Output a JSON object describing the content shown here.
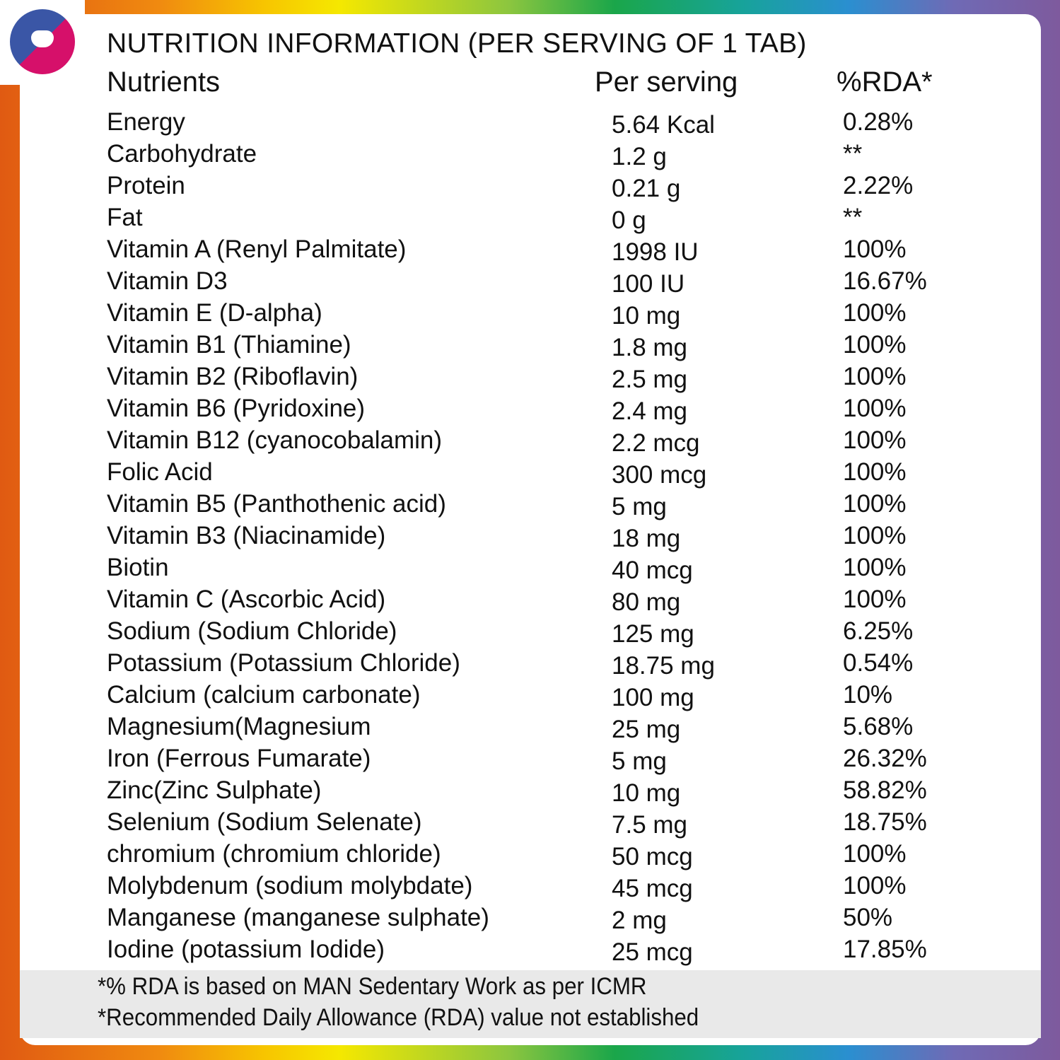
{
  "title": "NUTRITION INFORMATION (PER SERVING OF 1 TAB)",
  "headers": {
    "nutrient": "Nutrients",
    "per_serving": "Per serving",
    "rda": "%RDA*"
  },
  "rows": [
    {
      "nutrient": "Energy",
      "per_serving": "5.64 Kcal",
      "rda": "0.28%"
    },
    {
      "nutrient": "Carbohydrate",
      "per_serving": "1.2 g",
      "rda": "**"
    },
    {
      "nutrient": "Protein",
      "per_serving": "0.21 g",
      "rda": "2.22%"
    },
    {
      "nutrient": "Fat",
      "per_serving": "0 g",
      "rda": "**"
    },
    {
      "nutrient": "Vitamin A (Renyl Palmitate)",
      "per_serving": "1998 IU",
      "rda": "100%"
    },
    {
      "nutrient": "Vitamin D3",
      "per_serving": "100 IU",
      "rda": "16.67%"
    },
    {
      "nutrient": "Vitamin E (D-alpha)",
      "per_serving": "10 mg",
      "rda": "100%"
    },
    {
      "nutrient": "Vitamin B1 (Thiamine)",
      "per_serving": "1.8 mg",
      "rda": "100%"
    },
    {
      "nutrient": "Vitamin B2 (Riboflavin)",
      "per_serving": "2.5 mg",
      "rda": "100%"
    },
    {
      "nutrient": "Vitamin B6 (Pyridoxine)",
      "per_serving": "2.4 mg",
      "rda": "100%"
    },
    {
      "nutrient": "Vitamin B12 (cyanocobalamin)",
      "per_serving": "2.2 mcg",
      "rda": "100%"
    },
    {
      "nutrient": "Folic Acid",
      "per_serving": "300 mcg",
      "rda": "100%"
    },
    {
      "nutrient": "Vitamin B5 (Panthothenic acid)",
      "per_serving": "5 mg",
      "rda": "100%"
    },
    {
      "nutrient": "Vitamin B3 (Niacinamide)",
      "per_serving": "18 mg",
      "rda": "100%"
    },
    {
      "nutrient": "Biotin",
      "per_serving": "40 mcg",
      "rda": "100%"
    },
    {
      "nutrient": "Vitamin C (Ascorbic Acid)",
      "per_serving": "80 mg",
      "rda": "100%"
    },
    {
      "nutrient": "Sodium (Sodium Chloride)",
      "per_serving": "125 mg",
      "rda": "6.25%"
    },
    {
      "nutrient": "Potassium (Potassium Chloride)",
      "per_serving": "18.75 mg",
      "rda": "0.54%"
    },
    {
      "nutrient": "Calcium (calcium carbonate)",
      "per_serving": "100 mg",
      "rda": "10%"
    },
    {
      "nutrient": "Magnesium(Magnesium",
      "per_serving": "25 mg",
      "rda": "5.68%"
    },
    {
      "nutrient": "Iron (Ferrous Fumarate)",
      "per_serving": "5 mg",
      "rda": "26.32%"
    },
    {
      "nutrient": "Zinc(Zinc Sulphate)",
      "per_serving": "10 mg",
      "rda": "58.82%"
    },
    {
      "nutrient": "Selenium (Sodium Selenate)",
      "per_serving": "7.5 mg",
      "rda": "18.75%"
    },
    {
      "nutrient": "chromium (chromium chloride)",
      "per_serving": "50 mcg",
      "rda": "100%"
    },
    {
      "nutrient": "Molybdenum (sodium molybdate)",
      "per_serving": "45 mcg",
      "rda": "100%"
    },
    {
      "nutrient": "Manganese (manganese sulphate)",
      "per_serving": "2 mg",
      "rda": "50%"
    },
    {
      "nutrient": "Iodine (potassium Iodide)",
      "per_serving": "25 mcg",
      "rda": "17.85%"
    }
  ],
  "footnotes": [
    "*% RDA is based on MAN Sedentary Work as per ICMR",
    "*Recommended Daily Allowance (RDA) value not established"
  ],
  "colors": {
    "logo_blue": "#3a56a6",
    "logo_pink": "#d6106a",
    "footer_bg": "#e9e9e9"
  },
  "logo_icon": "heart-circle-logo"
}
